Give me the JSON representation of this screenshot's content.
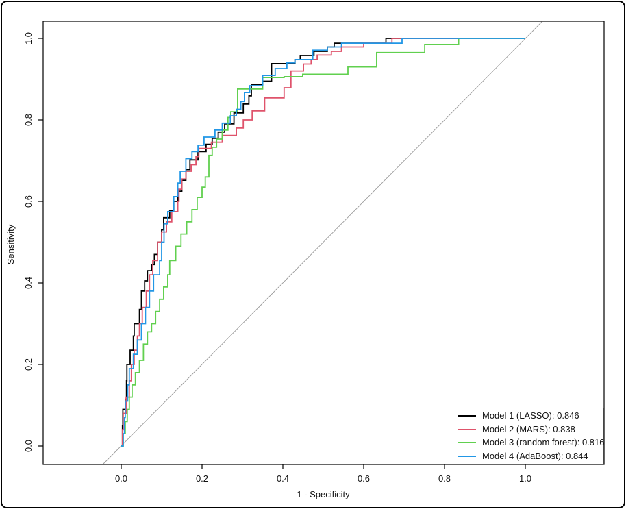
{
  "figure": {
    "background": "#ffffff",
    "frame_border_color": "#000000",
    "plot_box_color": "#000000"
  },
  "chart_data": {
    "type": "line",
    "subtype": "roc-step-curves",
    "title": "",
    "xlabel": "1 - Specificity",
    "ylabel": "Sensitivity",
    "xlim": [
      0,
      1
    ],
    "ylim": [
      0,
      1
    ],
    "xticks": [
      0.0,
      0.2,
      0.4,
      0.6,
      0.8,
      1.0
    ],
    "yticks": [
      0.0,
      0.2,
      0.4,
      0.6,
      0.8,
      1.0
    ],
    "xtick_labels": [
      "0.0",
      "0.2",
      "0.4",
      "0.6",
      "0.8",
      "1.0"
    ],
    "ytick_labels": [
      "0.0",
      "0.2",
      "0.4",
      "0.6",
      "0.8",
      "1.0"
    ],
    "grid": false,
    "diagonal_reference_line": {
      "present": true,
      "color": "#9a9a9a",
      "from": [
        0,
        0
      ],
      "to": [
        1,
        1
      ]
    },
    "legend": {
      "position": "bottomright",
      "border_color": "#444444",
      "items": [
        "Model 1 (LASSO): 0.846",
        "Model 2 (MARS): 0.838",
        "Model 3 (random forest): 0.816",
        "Model 4 (AdaBoost): 0.844"
      ]
    },
    "series": [
      {
        "name": "Model 1 (LASSO)",
        "auc": 0.846,
        "color": "#000000",
        "legend_label": "Model 1 (LASSO): 0.846",
        "points": [
          [
            0,
            0
          ],
          [
            0.003,
            0.05
          ],
          [
            0.004,
            0.09
          ],
          [
            0.01,
            0.115
          ],
          [
            0.013,
            0.16
          ],
          [
            0.014,
            0.2
          ],
          [
            0.022,
            0.235
          ],
          [
            0.03,
            0.27
          ],
          [
            0.032,
            0.3
          ],
          [
            0.045,
            0.335
          ],
          [
            0.05,
            0.38
          ],
          [
            0.058,
            0.405
          ],
          [
            0.065,
            0.43
          ],
          [
            0.075,
            0.445
          ],
          [
            0.082,
            0.47
          ],
          [
            0.09,
            0.5
          ],
          [
            0.1,
            0.53
          ],
          [
            0.105,
            0.56
          ],
          [
            0.12,
            0.578
          ],
          [
            0.13,
            0.6
          ],
          [
            0.14,
            0.625
          ],
          [
            0.15,
            0.652
          ],
          [
            0.16,
            0.678
          ],
          [
            0.17,
            0.702
          ],
          [
            0.19,
            0.722
          ],
          [
            0.21,
            0.74
          ],
          [
            0.225,
            0.755
          ],
          [
            0.24,
            0.77
          ],
          [
            0.256,
            0.79
          ],
          [
            0.279,
            0.817
          ],
          [
            0.302,
            0.839
          ],
          [
            0.316,
            0.859
          ],
          [
            0.322,
            0.887
          ],
          [
            0.35,
            0.895
          ],
          [
            0.372,
            0.938
          ],
          [
            0.43,
            0.948
          ],
          [
            0.443,
            0.958
          ],
          [
            0.477,
            0.968
          ],
          [
            0.51,
            0.979
          ],
          [
            0.527,
            0.988
          ],
          [
            0.655,
            1.0
          ],
          [
            1.0,
            1.0
          ]
        ]
      },
      {
        "name": "Model 2 (MARS)",
        "auc": 0.838,
        "color": "#DF536B",
        "legend_label": "Model 2 (MARS): 0.838",
        "points": [
          [
            0,
            0
          ],
          [
            0.003,
            0.04
          ],
          [
            0.005,
            0.08
          ],
          [
            0.012,
            0.12
          ],
          [
            0.02,
            0.16
          ],
          [
            0.025,
            0.2
          ],
          [
            0.032,
            0.235
          ],
          [
            0.04,
            0.27
          ],
          [
            0.045,
            0.3
          ],
          [
            0.052,
            0.34
          ],
          [
            0.062,
            0.38
          ],
          [
            0.07,
            0.42
          ],
          [
            0.078,
            0.455
          ],
          [
            0.09,
            0.5
          ],
          [
            0.1,
            0.525
          ],
          [
            0.112,
            0.55
          ],
          [
            0.125,
            0.575
          ],
          [
            0.14,
            0.6
          ],
          [
            0.143,
            0.63
          ],
          [
            0.15,
            0.655
          ],
          [
            0.16,
            0.674
          ],
          [
            0.173,
            0.69
          ],
          [
            0.185,
            0.71
          ],
          [
            0.192,
            0.73
          ],
          [
            0.223,
            0.745
          ],
          [
            0.25,
            0.762
          ],
          [
            0.285,
            0.78
          ],
          [
            0.302,
            0.8
          ],
          [
            0.324,
            0.822
          ],
          [
            0.355,
            0.854
          ],
          [
            0.403,
            0.879
          ],
          [
            0.42,
            0.92
          ],
          [
            0.451,
            0.937
          ],
          [
            0.47,
            0.948
          ],
          [
            0.485,
            0.959
          ],
          [
            0.52,
            0.968
          ],
          [
            0.545,
            0.979
          ],
          [
            0.6,
            0.988
          ],
          [
            0.67,
            1.0
          ],
          [
            1.0,
            1.0
          ]
        ]
      },
      {
        "name": "Model 3 (random forest)",
        "auc": 0.816,
        "color": "#61D04F",
        "legend_label": "Model 3 (random forest): 0.816",
        "points": [
          [
            0,
            0
          ],
          [
            0.005,
            0.03
          ],
          [
            0.01,
            0.06
          ],
          [
            0.015,
            0.09
          ],
          [
            0.02,
            0.12
          ],
          [
            0.027,
            0.15
          ],
          [
            0.035,
            0.18
          ],
          [
            0.045,
            0.21
          ],
          [
            0.055,
            0.25
          ],
          [
            0.065,
            0.28
          ],
          [
            0.075,
            0.3
          ],
          [
            0.085,
            0.33
          ],
          [
            0.095,
            0.36
          ],
          [
            0.105,
            0.39
          ],
          [
            0.115,
            0.42
          ],
          [
            0.12,
            0.455
          ],
          [
            0.135,
            0.49
          ],
          [
            0.148,
            0.52
          ],
          [
            0.162,
            0.55
          ],
          [
            0.175,
            0.58
          ],
          [
            0.188,
            0.61
          ],
          [
            0.2,
            0.635
          ],
          [
            0.208,
            0.66
          ],
          [
            0.217,
            0.713
          ],
          [
            0.225,
            0.733
          ],
          [
            0.236,
            0.753
          ],
          [
            0.25,
            0.775
          ],
          [
            0.264,
            0.806
          ],
          [
            0.271,
            0.82
          ],
          [
            0.288,
            0.876
          ],
          [
            0.35,
            0.904
          ],
          [
            0.403,
            0.906
          ],
          [
            0.449,
            0.912
          ],
          [
            0.561,
            0.93
          ],
          [
            0.632,
            0.965
          ],
          [
            0.751,
            0.985
          ],
          [
            0.835,
            1.0
          ],
          [
            1.0,
            1.0
          ]
        ]
      },
      {
        "name": "Model 4 (AdaBoost)",
        "auc": 0.844,
        "color": "#2297E6",
        "legend_label": "Model 4 (AdaBoost): 0.844",
        "points": [
          [
            0,
            0
          ],
          [
            0.005,
            0.03
          ],
          [
            0.008,
            0.07
          ],
          [
            0.01,
            0.11
          ],
          [
            0.016,
            0.15
          ],
          [
            0.02,
            0.19
          ],
          [
            0.03,
            0.225
          ],
          [
            0.04,
            0.26
          ],
          [
            0.05,
            0.3
          ],
          [
            0.06,
            0.34
          ],
          [
            0.07,
            0.38
          ],
          [
            0.08,
            0.42
          ],
          [
            0.095,
            0.455
          ],
          [
            0.1,
            0.5
          ],
          [
            0.106,
            0.545
          ],
          [
            0.115,
            0.575
          ],
          [
            0.13,
            0.612
          ],
          [
            0.14,
            0.645
          ],
          [
            0.146,
            0.674
          ],
          [
            0.16,
            0.705
          ],
          [
            0.175,
            0.722
          ],
          [
            0.19,
            0.738
          ],
          [
            0.205,
            0.758
          ],
          [
            0.232,
            0.775
          ],
          [
            0.25,
            0.792
          ],
          [
            0.27,
            0.81
          ],
          [
            0.285,
            0.826
          ],
          [
            0.296,
            0.845
          ],
          [
            0.305,
            0.867
          ],
          [
            0.318,
            0.884
          ],
          [
            0.35,
            0.909
          ],
          [
            0.381,
            0.926
          ],
          [
            0.41,
            0.94
          ],
          [
            0.43,
            0.948
          ],
          [
            0.474,
            0.971
          ],
          [
            0.51,
            0.979
          ],
          [
            0.545,
            0.988
          ],
          [
            0.695,
            1.0
          ],
          [
            1.0,
            1.0
          ]
        ]
      }
    ]
  }
}
